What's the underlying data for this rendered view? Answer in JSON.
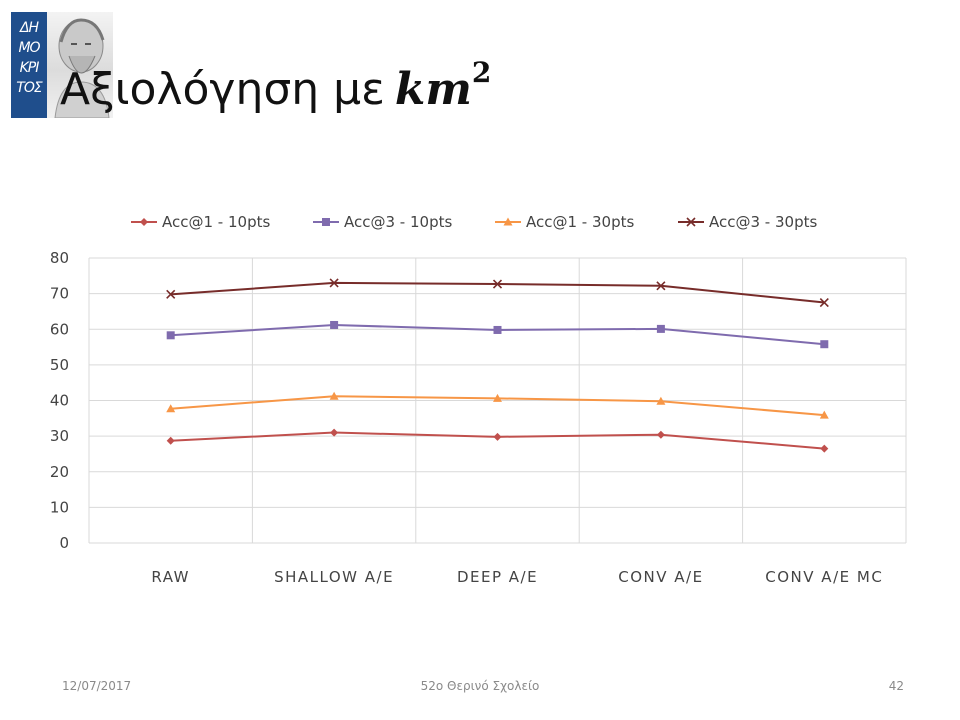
{
  "slide": {
    "title_text": "Αξιολόγηση με",
    "title_math": "km",
    "title_exponent": "2",
    "logo_letters": [
      "ΔΗ",
      "ΜΟ",
      "ΚΡΙ",
      "ΤΟΣ"
    ],
    "footer": {
      "date": "12/07/2017",
      "center": "52ο Θερινό Σχολείο",
      "page": "42"
    }
  },
  "chart_data": {
    "type": "line",
    "categories": [
      "RAW",
      "SHALLOW A/E",
      "DEEP A/E",
      "CONV A/E",
      "CONV A/E MC"
    ],
    "ylim": [
      0,
      80
    ],
    "yticks": [
      0,
      10,
      20,
      30,
      40,
      50,
      60,
      70,
      80
    ],
    "grid": true,
    "legend_position": "top",
    "series": [
      {
        "name": "Acc@1 - 10pts",
        "values": [
          28.7,
          31.0,
          29.8,
          30.4,
          26.5
        ],
        "color": "#c0504d",
        "marker": "diamond"
      },
      {
        "name": "Acc@3 - 10pts",
        "values": [
          58.3,
          61.2,
          59.8,
          60.1,
          55.8
        ],
        "color": "#7f6bae",
        "marker": "square"
      },
      {
        "name": "Acc@1 - 30pts",
        "values": [
          37.7,
          41.2,
          40.6,
          39.8,
          35.9
        ],
        "color": "#f79646",
        "marker": "triangle"
      },
      {
        "name": "Acc@3 - 30pts",
        "values": [
          69.8,
          73.0,
          72.7,
          72.2,
          67.5
        ],
        "color": "#772c2a",
        "marker": "x"
      }
    ]
  }
}
